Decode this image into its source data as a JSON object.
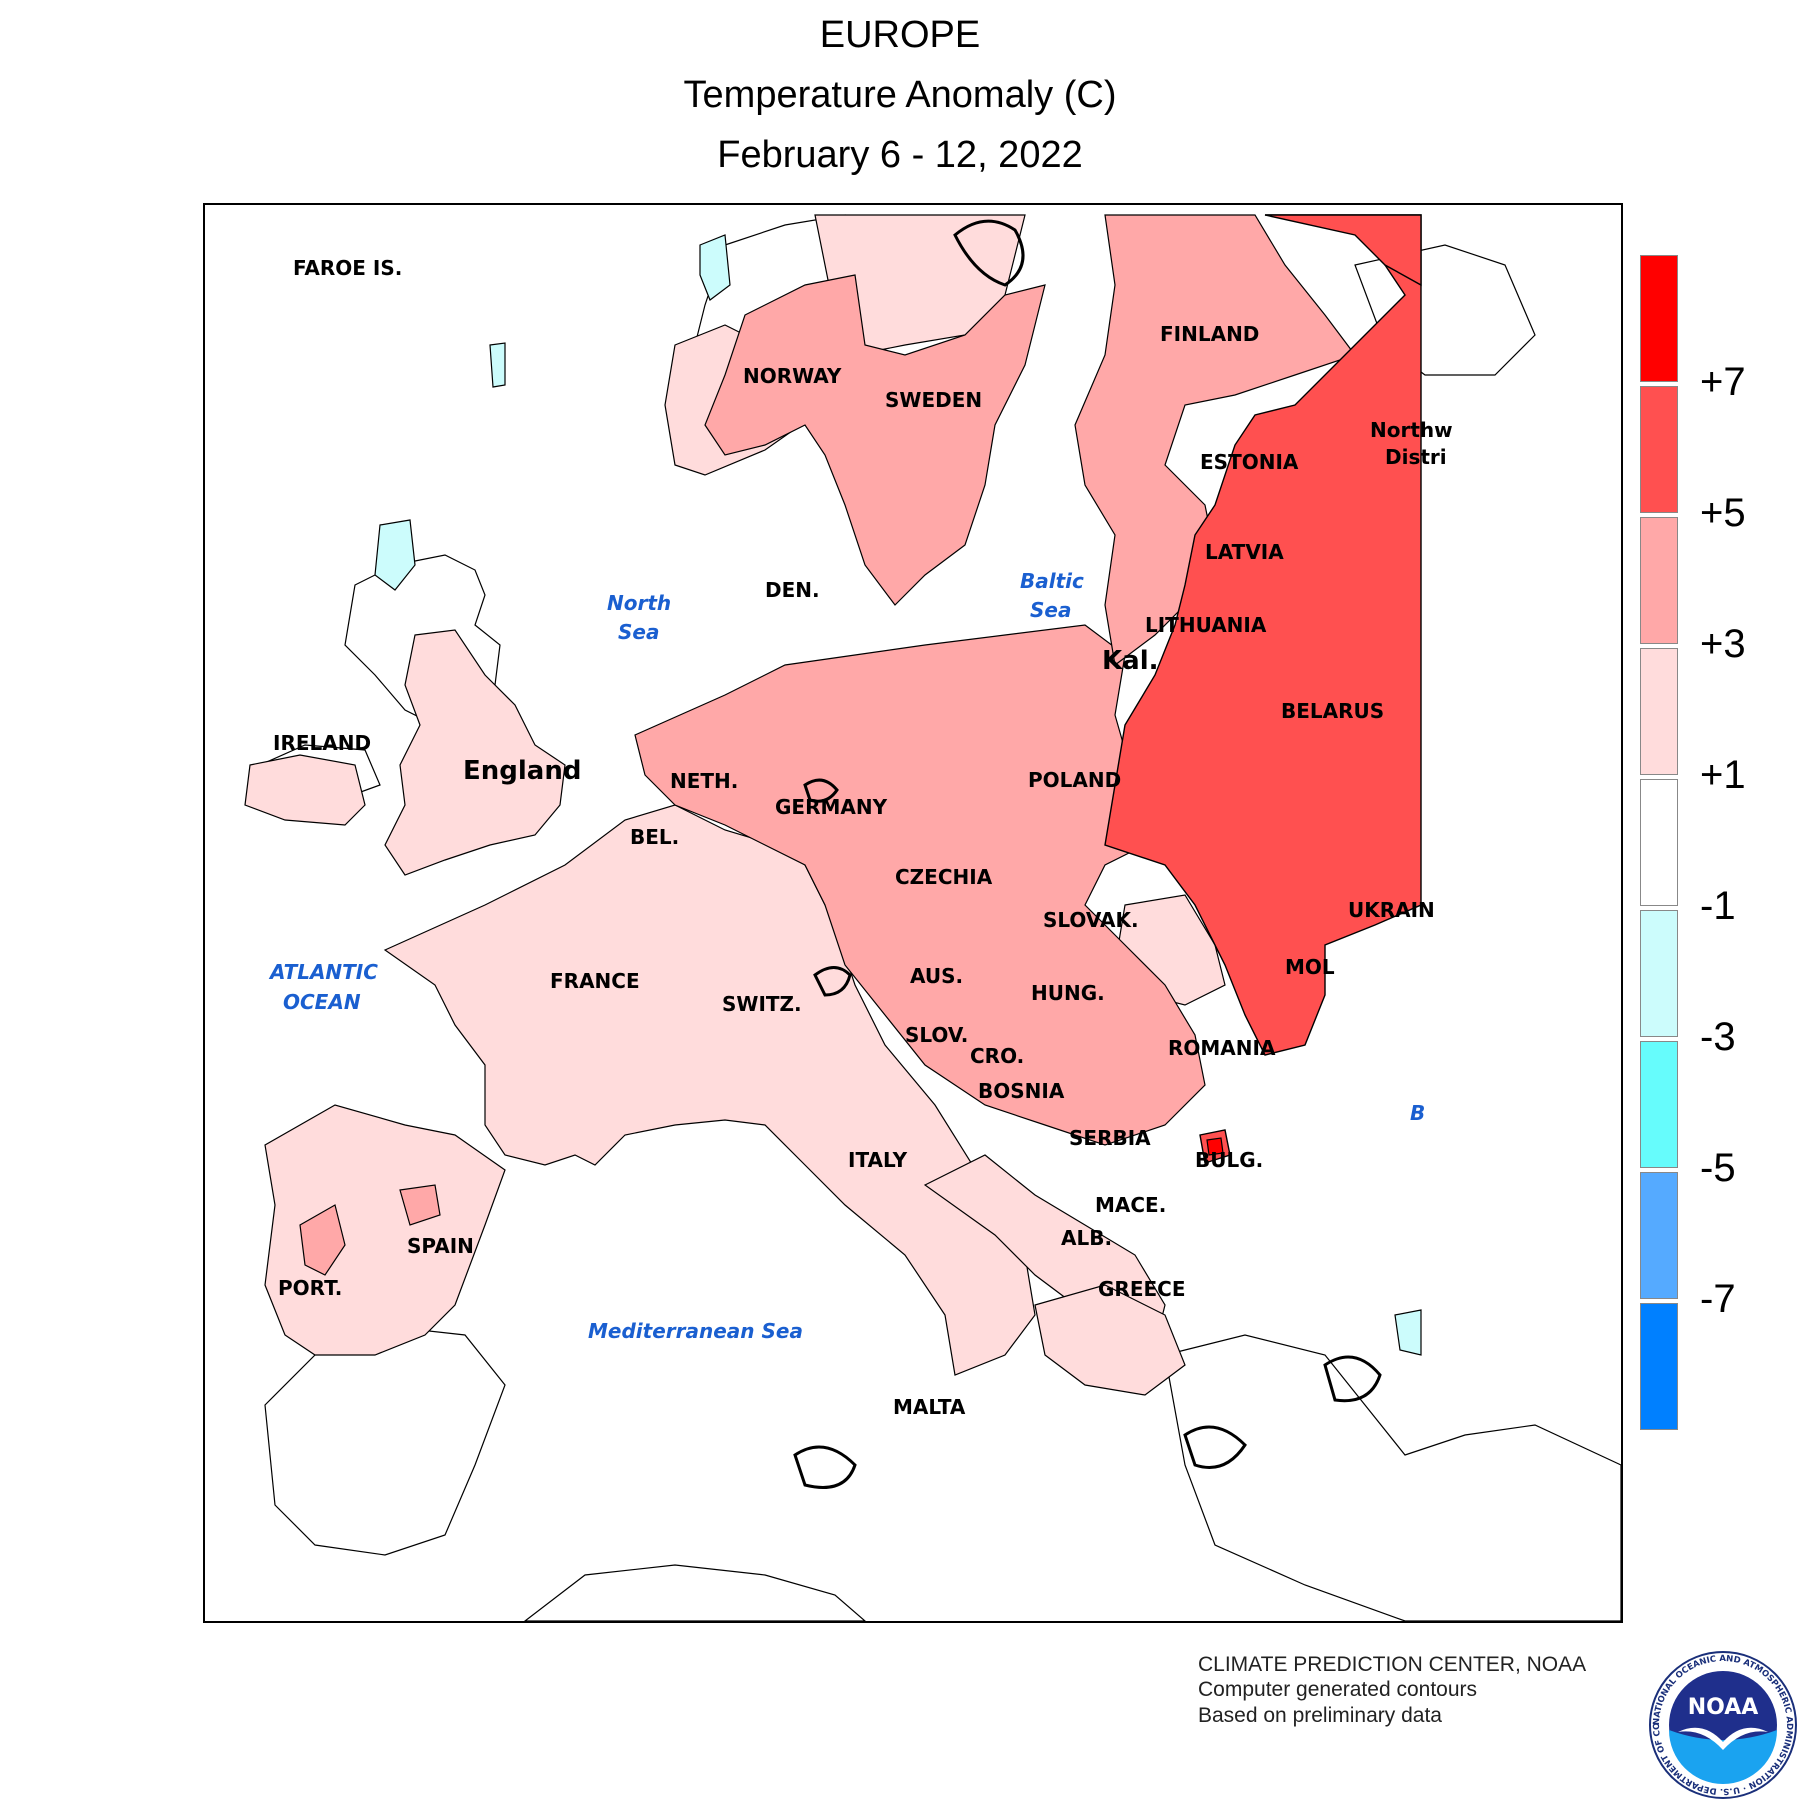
{
  "header": {
    "line1": "EUROPE",
    "line2": "Temperature Anomaly (C)",
    "line3": "February 6 - 12, 2022"
  },
  "labels": {
    "faroe": "FAROE IS.",
    "norway": "NORWAY",
    "sweden": "SWEDEN",
    "finland": "FINLAND",
    "estonia": "ESTONIA",
    "latvia": "LATVIA",
    "lithuania": "LITHUANIA",
    "kal": "Kal.",
    "belarus": "BELARUS",
    "northwest_1": "Northw",
    "northwest_2": "Distri",
    "denmark": "DEN.",
    "ireland": "IRELAND",
    "england": "England",
    "netherlands": "NETH.",
    "germany": "GERMANY",
    "belgium": "BEL.",
    "poland": "POLAND",
    "czechia": "CZECHIA",
    "slovakia": "SLOVAK.",
    "ukraine": "UKRAIN",
    "moldova": "MOL",
    "france": "FRANCE",
    "switzerland": "SWITZ.",
    "austria": "AUS.",
    "hungary": "HUNG.",
    "slovenia": "SLOV.",
    "croatia": "CRO.",
    "romania": "ROMANIA",
    "bosnia": "BOSNIA",
    "serbia": "SERBIA",
    "bulgaria": "BULG.",
    "macedonia": "MACE.",
    "albania": "ALB.",
    "greece": "GREECE",
    "italy": "ITALY",
    "spain": "SPAIN",
    "portugal": "PORT.",
    "malta": "MALTA",
    "black_sea_partial": "B"
  },
  "water_labels": {
    "north_sea_1": "North",
    "north_sea_2": "Sea",
    "baltic_1": "Baltic",
    "baltic_2": "Sea",
    "atlantic_1": "ATLANTIC",
    "atlantic_2": "OCEAN",
    "mediterranean": "Mediterranean Sea"
  },
  "legend": {
    "bins": [
      {
        "range": "> +7",
        "color": "#ff0000"
      },
      {
        "range": "+5 to +7",
        "color": "#ff5050"
      },
      {
        "range": "+3 to +5",
        "color": "#ffa8a8"
      },
      {
        "range": "+1 to +3",
        "color": "#ffdcdc"
      },
      {
        "range": "-1 to +1",
        "color": "#ffffff"
      },
      {
        "range": "-3 to -1",
        "color": "#ccfcfc"
      },
      {
        "range": "-5 to -3",
        "color": "#66fcfc"
      },
      {
        "range": "-7 to -5",
        "color": "#55aaff"
      },
      {
        "range": "< -7",
        "color": "#0080ff"
      }
    ],
    "ticks": [
      "+7",
      "+5",
      "+3",
      "+1",
      "-1",
      "-3",
      "-5",
      "-7"
    ]
  },
  "colors": {
    "anomaly_gt7": "#ff0000",
    "anomaly_5_7": "#ff5050",
    "anomaly_3_5": "#ffa8a8",
    "anomaly_1_3": "#ffdcdc",
    "anomaly_neutral": "#ffffff",
    "anomaly_neg1_3": "#ccfcfc",
    "water_label": "#1a5fd0"
  },
  "credits": {
    "line1": "CLIMATE PREDICTION CENTER, NOAA",
    "line2": "Computer generated contours",
    "line3": "Based on preliminary data"
  },
  "logo": {
    "text": "NOAA",
    "ring_text": "NATIONAL OCEANIC AND ATMOSPHERIC ADMINISTRATION · U.S. DEPARTMENT OF COMMERCE ·",
    "icon": "noaa-seagull-logo"
  }
}
